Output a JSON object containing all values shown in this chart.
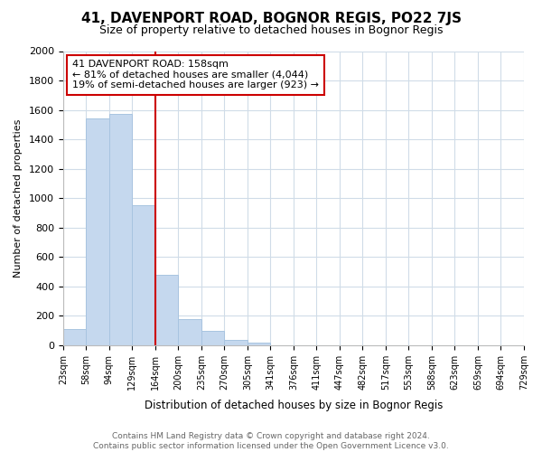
{
  "title": "41, DAVENPORT ROAD, BOGNOR REGIS, PO22 7JS",
  "subtitle": "Size of property relative to detached houses in Bognor Regis",
  "xlabel": "Distribution of detached houses by size in Bognor Regis",
  "ylabel": "Number of detached properties",
  "bar_values": [
    112,
    1540,
    1575,
    950,
    480,
    180,
    100,
    35,
    20,
    0,
    0,
    0,
    0,
    0,
    0,
    0,
    0,
    0,
    0,
    0
  ],
  "bar_labels": [
    "23sqm",
    "58sqm",
    "94sqm",
    "129sqm",
    "164sqm",
    "200sqm",
    "235sqm",
    "270sqm",
    "305sqm",
    "341sqm",
    "376sqm",
    "411sqm",
    "447sqm",
    "482sqm",
    "517sqm",
    "553sqm",
    "588sqm",
    "623sqm",
    "659sqm",
    "694sqm",
    "729sqm"
  ],
  "bar_color": "#c5d8ee",
  "bar_edge_color": "#a8c4e0",
  "vline_x": 4,
  "vline_color": "#cc0000",
  "annotation_title": "41 DAVENPORT ROAD: 158sqm",
  "annotation_line1": "← 81% of detached houses are smaller (4,044)",
  "annotation_line2": "19% of semi-detached houses are larger (923) →",
  "annotation_box_color": "#ffffff",
  "annotation_box_edge": "#cc0000",
  "ylim": [
    0,
    2000
  ],
  "yticks": [
    0,
    200,
    400,
    600,
    800,
    1000,
    1200,
    1400,
    1600,
    1800,
    2000
  ],
  "footer_line1": "Contains HM Land Registry data © Crown copyright and database right 2024.",
  "footer_line2": "Contains public sector information licensed under the Open Government Licence v3.0.",
  "bg_color": "#ffffff",
  "grid_color": "#d0dce8"
}
